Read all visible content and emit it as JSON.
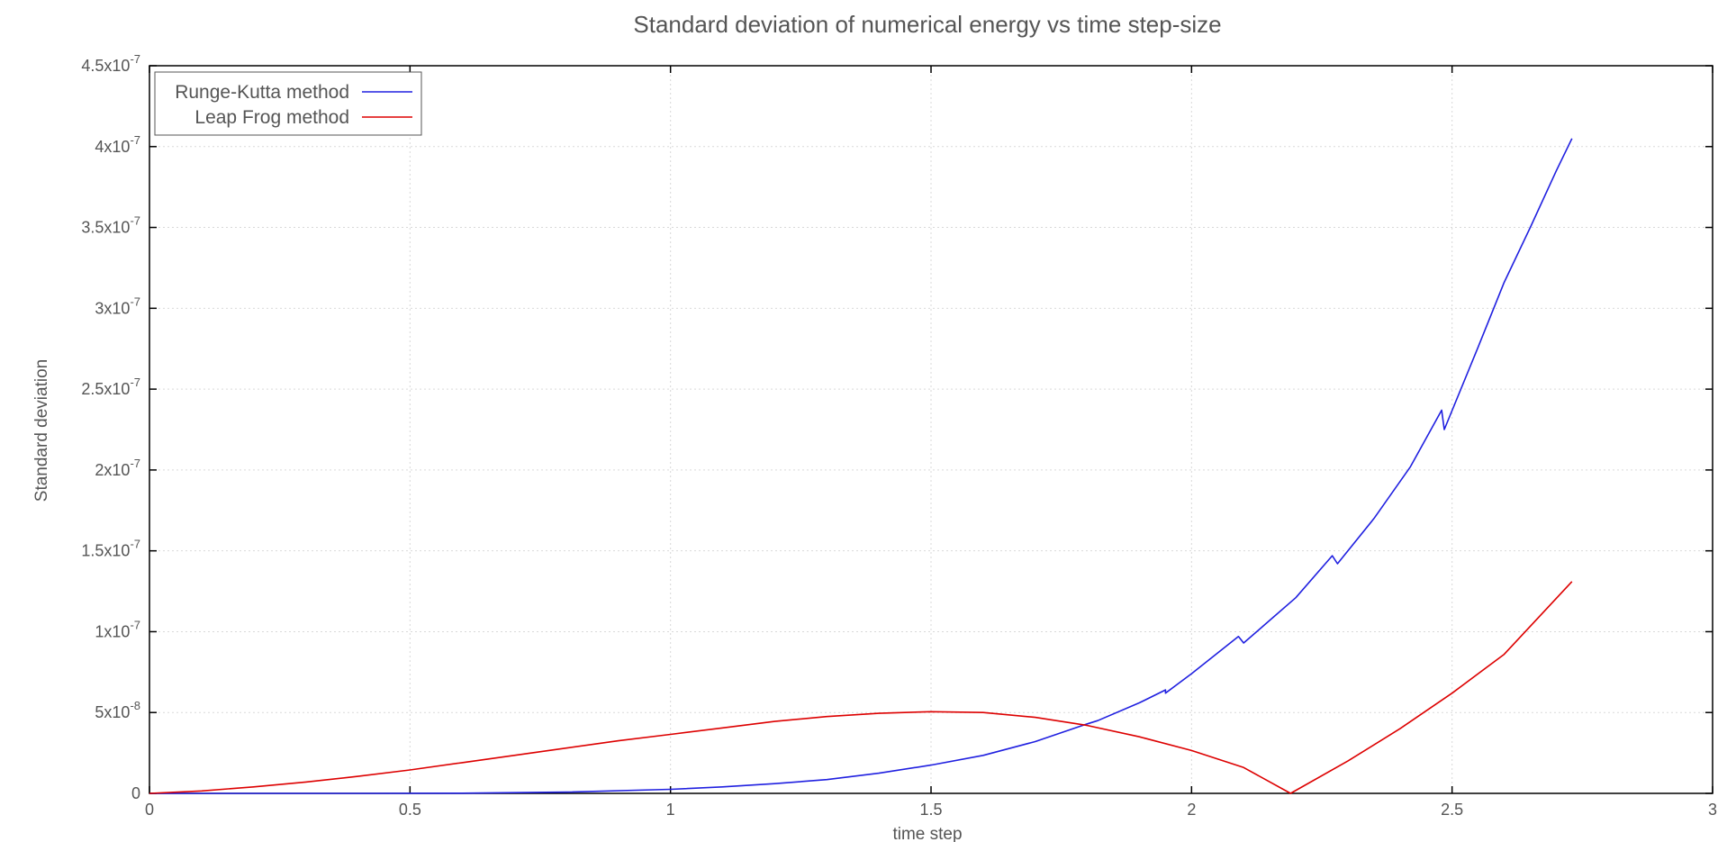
{
  "chart_data": {
    "type": "line",
    "title": "Standard deviation of numerical energy vs time step-size",
    "xlabel": "time step",
    "ylabel": "Standard deviation",
    "xlim": [
      0,
      3
    ],
    "ylim": [
      0,
      4.5e-07
    ],
    "grid": true,
    "legend_position": "top-left",
    "x_ticks": [
      0,
      0.5,
      1,
      1.5,
      2,
      2.5,
      3
    ],
    "x_tick_labels": [
      "0",
      "0.5",
      "1",
      "1.5",
      "2",
      "2.5",
      "3"
    ],
    "y_ticks": [
      0,
      5e-08,
      1e-07,
      1.5e-07,
      2e-07,
      2.5e-07,
      3e-07,
      3.5e-07,
      4e-07,
      4.5e-07
    ],
    "y_tick_labels": [
      {
        "mantissa": "0",
        "exponent": ""
      },
      {
        "mantissa": "5x10",
        "exponent": "-8"
      },
      {
        "mantissa": "1x10",
        "exponent": "-7"
      },
      {
        "mantissa": "1.5x10",
        "exponent": "-7"
      },
      {
        "mantissa": "2x10",
        "exponent": "-7"
      },
      {
        "mantissa": "2.5x10",
        "exponent": "-7"
      },
      {
        "mantissa": "3x10",
        "exponent": "-7"
      },
      {
        "mantissa": "3.5x10",
        "exponent": "-7"
      },
      {
        "mantissa": "4x10",
        "exponent": "-7"
      },
      {
        "mantissa": "4.5x10",
        "exponent": "-7"
      }
    ],
    "series": [
      {
        "name": "Runge-Kutta method",
        "color": "#2020e0",
        "x": [
          0,
          0.2,
          0.4,
          0.6,
          0.8,
          1.0,
          1.1,
          1.2,
          1.3,
          1.4,
          1.5,
          1.6,
          1.7,
          1.8,
          1.82,
          1.9,
          1.95,
          1.95,
          2.0,
          2.09,
          2.1,
          2.15,
          2.2,
          2.27,
          2.28,
          2.35,
          2.42,
          2.48,
          2.485,
          2.55,
          2.6,
          2.65,
          2.7,
          2.73
        ],
        "y": [
          0,
          0,
          0,
          1e-10,
          8e-10,
          2.5e-09,
          4e-09,
          6e-09,
          8.5e-09,
          1.25e-08,
          1.75e-08,
          2.35e-08,
          3.2e-08,
          4.3e-08,
          4.5e-08,
          5.6e-08,
          6.4e-08,
          6.2e-08,
          7.4e-08,
          9.7e-08,
          9.3e-08,
          1.07e-07,
          1.21e-07,
          1.47e-07,
          1.42e-07,
          1.7e-07,
          2.02e-07,
          2.37e-07,
          2.25e-07,
          2.76e-07,
          3.16e-07,
          3.5e-07,
          3.85e-07,
          4.05e-07
        ]
      },
      {
        "name": "Leap Frog method",
        "color": "#dd0000",
        "x": [
          0,
          0.1,
          0.2,
          0.3,
          0.4,
          0.5,
          0.6,
          0.7,
          0.8,
          0.9,
          1.0,
          1.1,
          1.2,
          1.3,
          1.4,
          1.5,
          1.6,
          1.7,
          1.8,
          1.9,
          2.0,
          2.1,
          2.19,
          2.3,
          2.4,
          2.5,
          2.6,
          2.73
        ],
        "y": [
          0,
          1.5e-09,
          4e-09,
          7e-09,
          1.05e-08,
          1.45e-08,
          1.9e-08,
          2.35e-08,
          2.8e-08,
          3.25e-08,
          3.65e-08,
          4.05e-08,
          4.45e-08,
          4.75e-08,
          4.95e-08,
          5.05e-08,
          5e-08,
          4.7e-08,
          4.2e-08,
          3.5e-08,
          2.65e-08,
          1.6e-08,
          0,
          2e-08,
          4e-08,
          6.2e-08,
          8.6e-08,
          1.31e-07
        ]
      }
    ]
  }
}
